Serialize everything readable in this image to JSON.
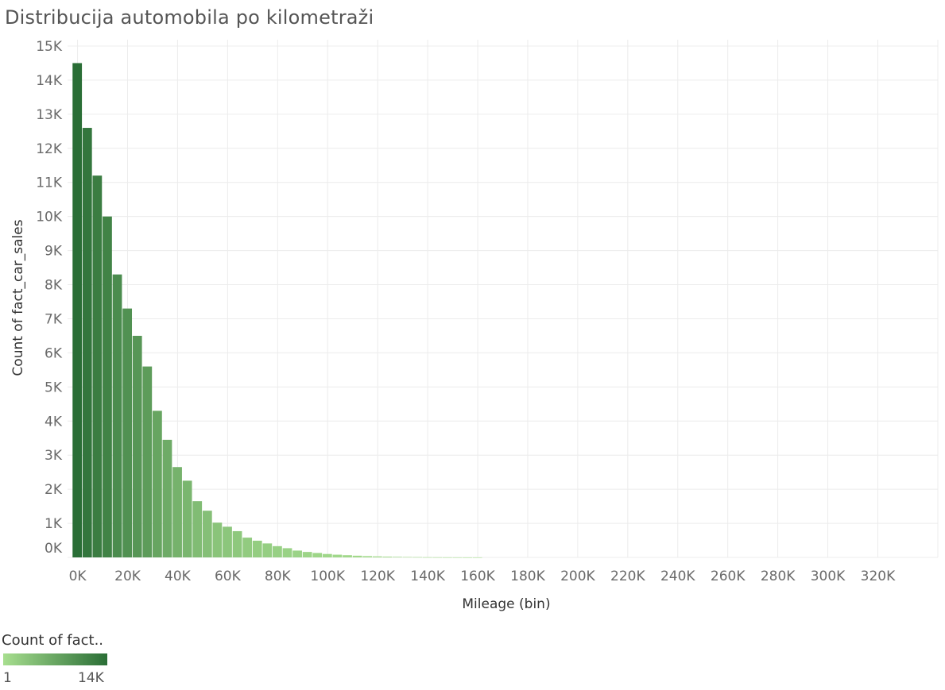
{
  "chart_data": {
    "type": "bar",
    "title": "Distribucija automobila po kilometraži",
    "xlabel": "Mileage (bin)",
    "ylabel": "Count of fact_car_sales",
    "bin_width": 4000,
    "x_ticks": [
      "0K",
      "20K",
      "40K",
      "60K",
      "80K",
      "100K",
      "120K",
      "140K",
      "160K",
      "180K",
      "200K",
      "220K",
      "240K",
      "260K",
      "280K",
      "300K",
      "320K"
    ],
    "x_tick_values": [
      0,
      20000,
      40000,
      60000,
      80000,
      100000,
      120000,
      140000,
      160000,
      180000,
      200000,
      220000,
      240000,
      260000,
      280000,
      300000,
      320000
    ],
    "xlim": [
      -4000,
      344000
    ],
    "y_ticks": [
      "0K",
      "1K",
      "2K",
      "3K",
      "4K",
      "5K",
      "6K",
      "7K",
      "8K",
      "9K",
      "10K",
      "11K",
      "12K",
      "13K",
      "14K",
      "15K"
    ],
    "y_tick_values": [
      0,
      1000,
      2000,
      3000,
      4000,
      5000,
      6000,
      7000,
      8000,
      9000,
      10000,
      11000,
      12000,
      13000,
      14000,
      15000
    ],
    "ylim": [
      0,
      15000
    ],
    "grid": true,
    "x": [
      0,
      4000,
      8000,
      12000,
      16000,
      20000,
      24000,
      28000,
      32000,
      36000,
      40000,
      44000,
      48000,
      52000,
      56000,
      60000,
      64000,
      68000,
      72000,
      76000,
      80000,
      84000,
      88000,
      92000,
      96000,
      100000,
      104000,
      108000,
      112000,
      116000,
      120000,
      124000,
      128000,
      132000,
      136000,
      140000,
      144000,
      148000,
      152000,
      156000,
      160000
    ],
    "values": [
      14500,
      12600,
      11200,
      10000,
      8300,
      7300,
      6500,
      5600,
      4300,
      3450,
      2650,
      2250,
      1650,
      1370,
      1020,
      900,
      770,
      580,
      490,
      410,
      330,
      270,
      200,
      160,
      130,
      100,
      80,
      65,
      50,
      38,
      30,
      23,
      17,
      12,
      9,
      6,
      4,
      3,
      2,
      1,
      1
    ]
  },
  "legend": {
    "title": "Count of fact..",
    "min_label": "1",
    "max_label": "14K",
    "color_low": "#a7de8f",
    "color_high": "#2a6e36"
  }
}
